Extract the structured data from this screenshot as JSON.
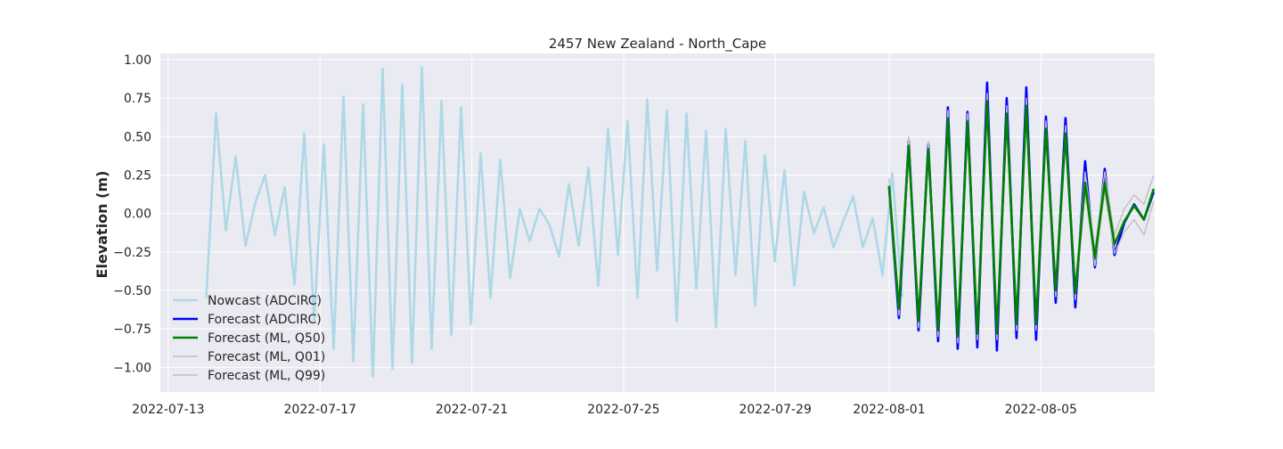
{
  "chart_data": {
    "type": "line",
    "title": "2457 New Zealand - North_Cape",
    "xlabel": "",
    "ylabel": "Elevation (m)",
    "xlim": [
      "2022-07-12T19:00",
      "2022-08-08T00:00"
    ],
    "ylim": [
      -1.16,
      1.04
    ],
    "x_ticks": [
      "2022-07-13",
      "2022-07-17",
      "2022-07-21",
      "2022-07-25",
      "2022-07-29",
      "2022-08-01",
      "2022-08-05"
    ],
    "y_ticks": [
      "1.00",
      "0.75",
      "0.50",
      "0.25",
      "0.00",
      "−0.25",
      "−0.50",
      "−0.75",
      "−1.00"
    ],
    "grid": true,
    "legend_position": "lower-left",
    "colors": {
      "background": "#eaeaf2",
      "grid": "#ffffff",
      "nowcast": "#add8e6",
      "forecast_adcirc": "#0000ff",
      "forecast_q50": "#008000",
      "forecast_quantile": "#bfbfbf"
    },
    "series": [
      {
        "name": "Nowcast (ADCIRC)",
        "t0": "2022-07-14T00:00",
        "step_hours": 6.2,
        "values": [
          -0.55,
          0.65,
          -0.11,
          0.37,
          -0.21,
          0.07,
          0.25,
          -0.14,
          0.17,
          -0.46,
          0.52,
          -0.7,
          0.45,
          -0.88,
          0.76,
          -0.96,
          0.71,
          -1.06,
          0.94,
          -1.01,
          0.84,
          -0.97,
          0.95,
          -0.88,
          0.73,
          -0.79,
          0.69,
          -0.72,
          0.39,
          -0.55,
          0.35,
          -0.42,
          0.03,
          -0.18,
          0.03,
          -0.07,
          -0.28,
          0.19,
          -0.21,
          0.3,
          -0.47,
          0.55,
          -0.27,
          0.6,
          -0.55,
          0.74,
          -0.37,
          0.67,
          -0.7,
          0.65,
          -0.49,
          0.54,
          -0.74,
          0.55,
          -0.4,
          0.47,
          -0.6,
          0.38,
          -0.31,
          0.28,
          -0.47,
          0.14,
          -0.13,
          0.04,
          -0.22,
          -0.05,
          0.11,
          -0.22,
          -0.03,
          -0.4,
          0.26,
          -0.54
        ]
      },
      {
        "name": "Forecast (ADCIRC)",
        "t0": "2022-08-01T00:00",
        "step_hours": 6.2,
        "values": [
          0.17,
          -0.68,
          0.47,
          -0.76,
          0.45,
          -0.83,
          0.69,
          -0.88,
          0.66,
          -0.87,
          0.85,
          -0.89,
          0.75,
          -0.81,
          0.82,
          -0.82,
          0.63,
          -0.58,
          0.62,
          -0.61,
          0.34,
          -0.35,
          0.29,
          -0.27,
          -0.06,
          0.06,
          -0.04,
          0.14
        ]
      },
      {
        "name": "Forecast (ML, Q50)",
        "t0": "2022-08-01T00:00",
        "step_hours": 6.2,
        "values": [
          0.18,
          -0.62,
          0.44,
          -0.7,
          0.42,
          -0.76,
          0.62,
          -0.8,
          0.6,
          -0.78,
          0.73,
          -0.78,
          0.65,
          -0.72,
          0.7,
          -0.72,
          0.55,
          -0.5,
          0.52,
          -0.52,
          0.2,
          -0.29,
          0.2,
          -0.2,
          -0.05,
          0.05,
          -0.04,
          0.16
        ]
      },
      {
        "name": "Forecast (ML, Q01)",
        "t0": "2022-08-01T00:00",
        "step_hours": 6.2,
        "values": [
          0.13,
          -0.66,
          0.4,
          -0.74,
          0.38,
          -0.8,
          0.58,
          -0.84,
          0.56,
          -0.82,
          0.69,
          -0.82,
          0.61,
          -0.76,
          0.66,
          -0.76,
          0.5,
          -0.54,
          0.47,
          -0.56,
          0.14,
          -0.34,
          0.14,
          -0.26,
          -0.12,
          -0.04,
          -0.14,
          0.08
        ]
      },
      {
        "name": "Forecast (ML, Q99)",
        "t0": "2022-08-01T00:00",
        "step_hours": 6.2,
        "values": [
          0.23,
          -0.58,
          0.5,
          -0.66,
          0.47,
          -0.72,
          0.67,
          -0.76,
          0.65,
          -0.74,
          0.78,
          -0.74,
          0.7,
          -0.68,
          0.75,
          -0.68,
          0.6,
          -0.46,
          0.57,
          -0.48,
          0.27,
          -0.24,
          0.27,
          -0.14,
          0.03,
          0.12,
          0.06,
          0.25
        ]
      }
    ]
  }
}
